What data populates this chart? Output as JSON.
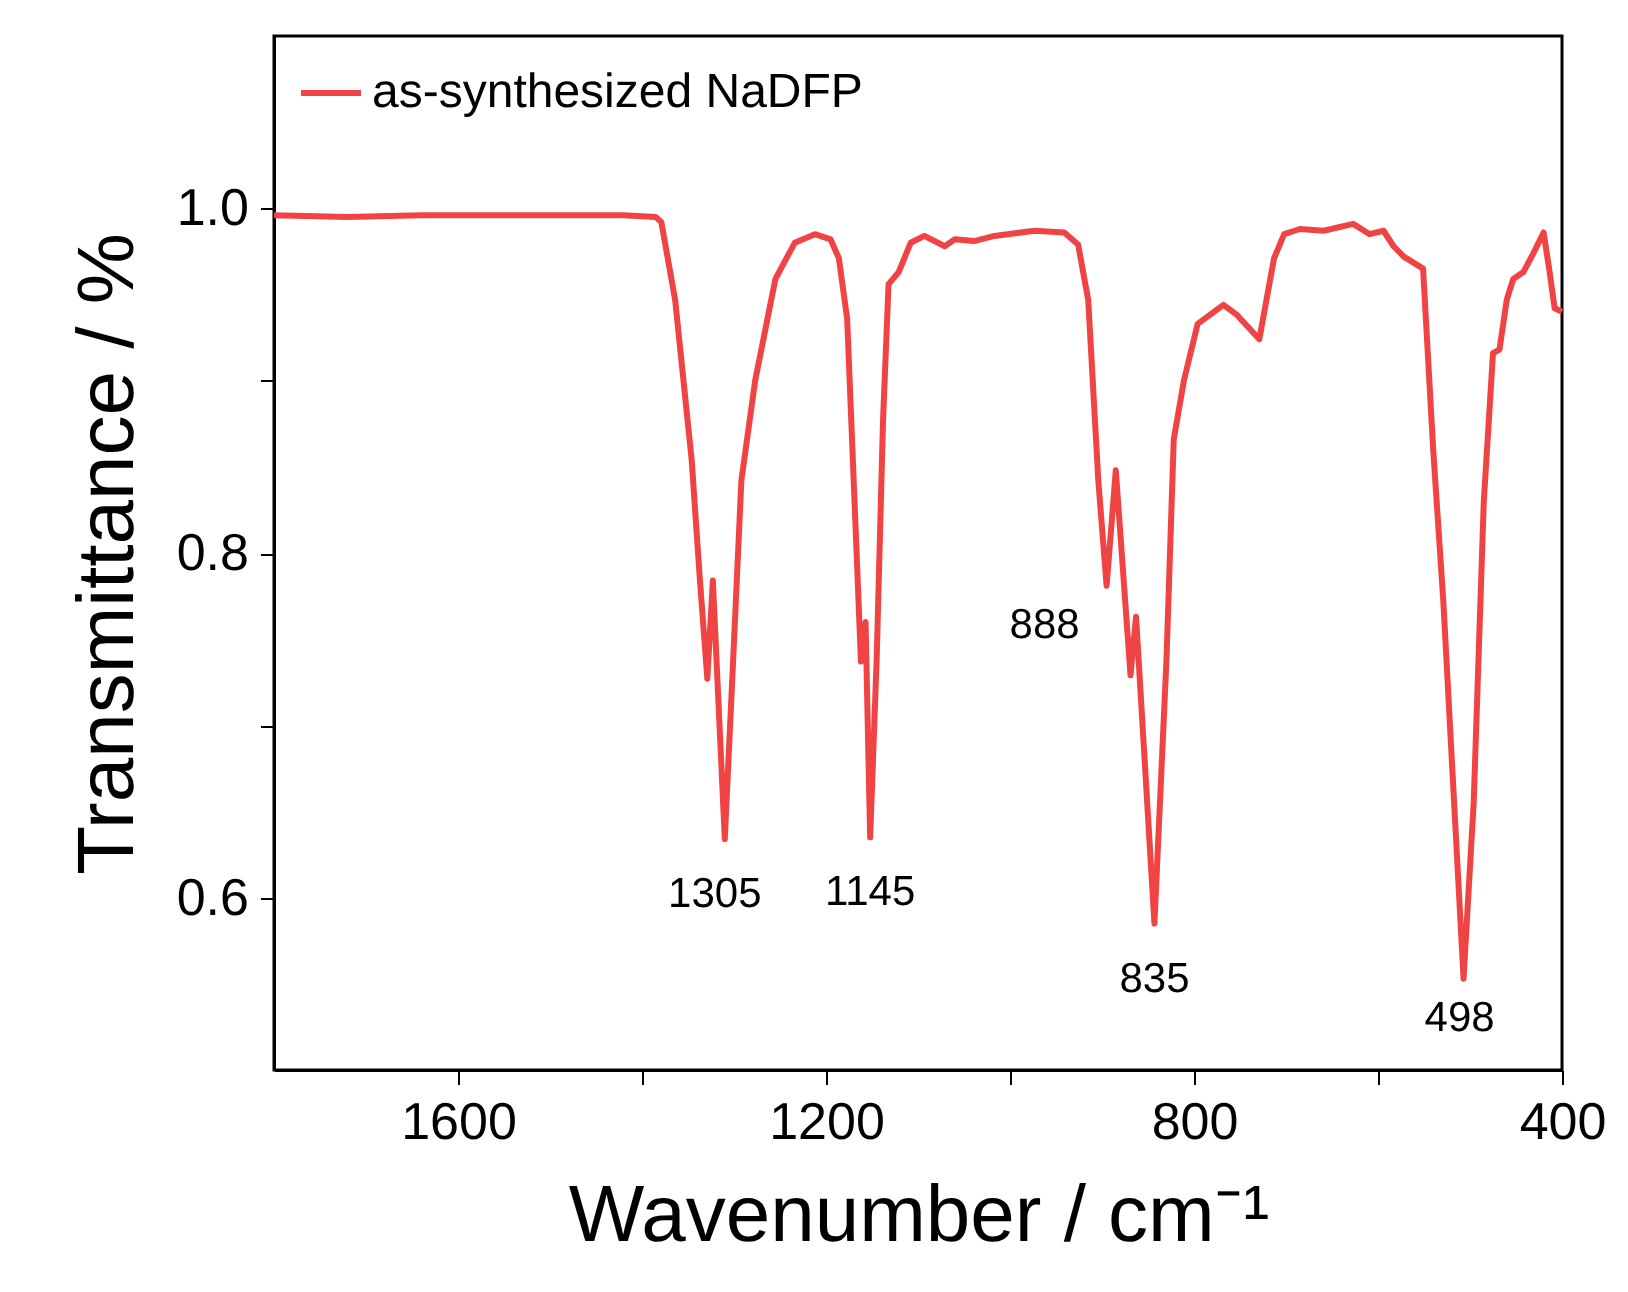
{
  "chart_data": {
    "type": "line",
    "xlabel": "Wavenumber / cm⁻¹",
    "ylabel": "Transmittance / %",
    "xlim": [
      1800,
      400
    ],
    "xticks": [
      1600,
      {
        "value": 1400,
        "label": null
      },
      1200,
      {
        "value": 1000,
        "label": null
      },
      800,
      {
        "value": 600,
        "label": null
      },
      400
    ],
    "ylim": [
      0.5,
      1.1
    ],
    "yticks": [
      0.6,
      {
        "value": 0.7,
        "label": null
      },
      0.8,
      {
        "value": 0.9,
        "label": null
      },
      {
        "value": 1,
        "label": "1.0"
      }
    ],
    "grid": false,
    "legend": "top left",
    "line_style": "solid",
    "marker": "none",
    "series": [
      {
        "name": "as-synthesized NaDFP",
        "color": "#f04444",
        "x": [
          1800,
          1720,
          1640,
          1560,
          1480,
          1420,
          1385,
          1379,
          1364,
          1346,
          1337,
          1329,
          1323,
          1310,
          1301,
          1292,
          1277,
          1255,
          1234,
          1212,
          1195,
          1186,
          1177,
          1169,
          1162,
          1157,
          1152,
          1145,
          1138,
          1132,
          1121,
          1108,
          1093,
          1071,
          1060,
          1039,
          1017,
          973,
          941,
          926,
          915,
          904,
          895,
          885,
          869,
          863,
          843,
          830,
          822,
          811,
          796,
          768,
          753,
          729,
          713,
          702,
          685,
          659,
          627,
          609,
          594,
          583,
          572,
          551,
          540,
          529,
          507,
          496,
          485,
          475,
          468,
          460,
          453,
          442,
          431,
          420,
          414,
          408,
          400
        ],
        "values": [
          0.996,
          0.995,
          0.996,
          0.996,
          0.996,
          0.996,
          0.995,
          0.992,
          0.947,
          0.854,
          0.784,
          0.727,
          0.784,
          0.634,
          0.737,
          0.842,
          0.9,
          0.959,
          0.98,
          0.985,
          0.982,
          0.971,
          0.936,
          0.83,
          0.737,
          0.76,
          0.635,
          0.737,
          0.877,
          0.956,
          0.963,
          0.98,
          0.984,
          0.978,
          0.982,
          0.981,
          0.984,
          0.987,
          0.986,
          0.979,
          0.947,
          0.842,
          0.781,
          0.848,
          0.729,
          0.763,
          0.585,
          0.737,
          0.866,
          0.9,
          0.933,
          0.944,
          0.938,
          0.924,
          0.971,
          0.985,
          0.988,
          0.987,
          0.991,
          0.985,
          0.987,
          0.978,
          0.972,
          0.965,
          0.86,
          0.772,
          0.553,
          0.655,
          0.83,
          0.916,
          0.918,
          0.947,
          0.959,
          0.963,
          0.974,
          0.986,
          0.965,
          0.942,
          0.94
        ]
      }
    ],
    "annotations": [
      {
        "text": "1305",
        "x": 1310,
        "y": 0.634
      },
      {
        "text": "1145",
        "x": 1152,
        "y": 0.635
      },
      {
        "text": "888",
        "x": 895,
        "y": 0.781
      },
      {
        "text": "835",
        "x": 843,
        "y": 0.585
      },
      {
        "text": "498",
        "x": 507,
        "y": 0.553
      }
    ]
  }
}
